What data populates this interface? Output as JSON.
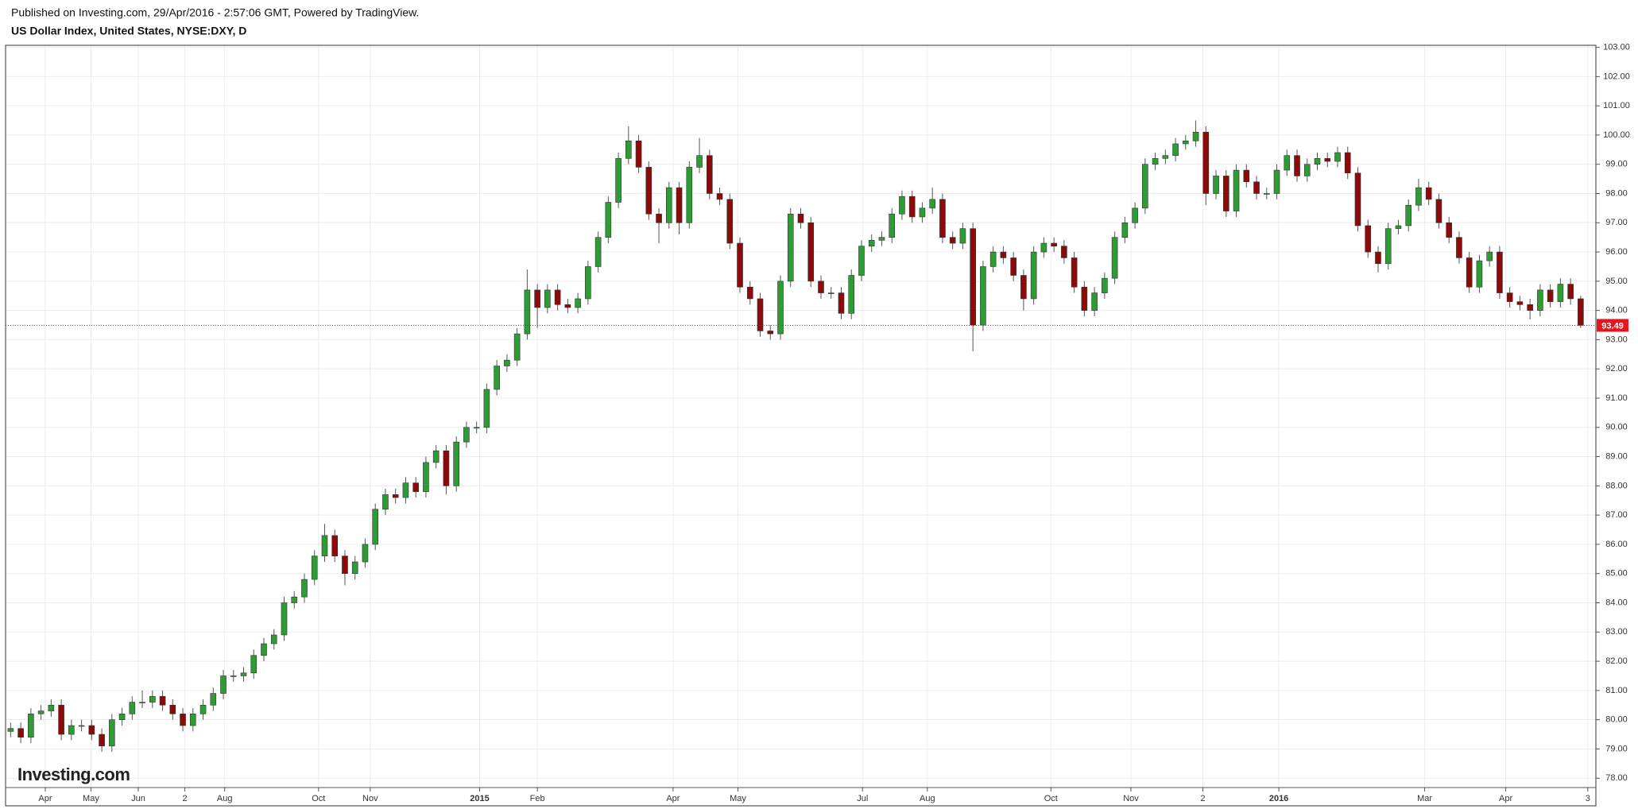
{
  "header": {
    "published": "Published on Investing.com, 29/Apr/2016 - 2:57:06 GMT, Powered by TradingView.",
    "instrument": "US Dollar Index, United States, NYSE:DXY, D"
  },
  "logo": "Investing.com",
  "chart_data": {
    "type": "candlestick",
    "up_color": "#2e9c34",
    "down_color": "#8b0a0a",
    "grid": true,
    "last_price": 93.49,
    "last_price_color": "#e8141b",
    "xlim": [
      -0.5,
      156.5
    ],
    "xticks": [
      {
        "value": 3.42,
        "label": "Apr"
      },
      {
        "value": 7.93,
        "label": "May"
      },
      {
        "value": 12.6,
        "label": "Jun"
      },
      {
        "value": 17.2,
        "label": "2"
      },
      {
        "value": 21.13,
        "label": "Aug"
      },
      {
        "value": 30.4,
        "label": "Oct"
      },
      {
        "value": 35.5,
        "label": "Nov"
      },
      {
        "value": 46.3,
        "label": "2015"
      },
      {
        "value": 52,
        "label": "Feb"
      },
      {
        "value": 65.4,
        "label": "Apr"
      },
      {
        "value": 71.8,
        "label": "May"
      },
      {
        "value": 84.1,
        "label": "Jul"
      },
      {
        "value": 90.5,
        "label": "Aug"
      },
      {
        "value": 102.7,
        "label": "Oct"
      },
      {
        "value": 110.6,
        "label": "Nov"
      },
      {
        "value": 117.7,
        "label": "2"
      },
      {
        "value": 125.2,
        "label": "2016"
      },
      {
        "value": 139.6,
        "label": "Mar"
      },
      {
        "value": 147.6,
        "label": "Apr"
      },
      {
        "value": 155.7,
        "label": "3"
      }
    ],
    "ylim": [
      77.68,
      103.07
    ],
    "yticks": [
      {
        "value": 78,
        "label": "78.00"
      },
      {
        "value": 79,
        "label": "79.00"
      },
      {
        "value": 80,
        "label": "80.00"
      },
      {
        "value": 81,
        "label": "81.00"
      },
      {
        "value": 82,
        "label": "82.00"
      },
      {
        "value": 83,
        "label": "83.00"
      },
      {
        "value": 84,
        "label": "84.00"
      },
      {
        "value": 85,
        "label": "85.00"
      },
      {
        "value": 86,
        "label": "86.00"
      },
      {
        "value": 87,
        "label": "87.00"
      },
      {
        "value": 88,
        "label": "88.00"
      },
      {
        "value": 89,
        "label": "89.00"
      },
      {
        "value": 90,
        "label": "90.00"
      },
      {
        "value": 91,
        "label": "91.00"
      },
      {
        "value": 92,
        "label": "92.00"
      },
      {
        "value": 93,
        "label": "93.00"
      },
      {
        "value": 94,
        "label": "94.00"
      },
      {
        "value": 95,
        "label": "95.00"
      },
      {
        "value": 96,
        "label": "96.00"
      },
      {
        "value": 97,
        "label": "97.00"
      },
      {
        "value": 98,
        "label": "98.00"
      },
      {
        "value": 99,
        "label": "99.00"
      },
      {
        "value": 100,
        "label": "100.00"
      },
      {
        "value": 101,
        "label": "101.00"
      },
      {
        "value": 102,
        "label": "102.00"
      },
      {
        "value": 103,
        "label": "103.00"
      }
    ],
    "open": [
      79.6,
      79.7,
      79.4,
      80.2,
      80.3,
      80.5,
      79.5,
      79.8,
      79.8,
      79.5,
      79.1,
      80.0,
      80.2,
      80.6,
      80.6,
      80.8,
      80.5,
      80.2,
      79.8,
      80.2,
      80.5,
      80.9,
      81.5,
      81.5,
      81.6,
      82.2,
      82.6,
      82.9,
      84.0,
      84.2,
      84.8,
      85.6,
      86.3,
      85.6,
      85.0,
      85.4,
      86.0,
      87.2,
      87.7,
      87.6,
      88.1,
      87.8,
      88.8,
      89.2,
      88.0,
      89.5,
      90.0,
      90.0,
      91.3,
      92.1,
      92.3,
      93.2,
      94.7,
      94.1,
      94.7,
      94.2,
      94.1,
      94.4,
      95.5,
      96.5,
      97.7,
      99.2,
      99.8,
      98.9,
      97.3,
      97.0,
      98.2,
      97.0,
      98.9,
      99.3,
      98.0,
      97.8,
      96.3,
      94.8,
      94.4,
      93.3,
      93.2,
      95.0,
      97.3,
      97.0,
      95.0,
      94.6,
      94.6,
      93.9,
      95.2,
      96.2,
      96.4,
      96.5,
      97.3,
      97.9,
      97.2,
      97.5,
      97.8,
      96.5,
      96.3,
      96.8,
      93.5,
      95.5,
      96.0,
      95.8,
      95.2,
      94.4,
      96.0,
      96.3,
      96.2,
      95.8,
      94.8,
      94.0,
      94.6,
      95.1,
      96.5,
      97.0,
      97.5,
      99.0,
      99.2,
      99.3,
      99.7,
      99.8,
      100.1,
      98.0,
      98.6,
      97.4,
      98.8,
      98.4,
      98.0,
      98.0,
      98.8,
      99.3,
      98.6,
      99.0,
      99.2,
      99.1,
      99.4,
      98.7,
      96.9,
      96.0,
      95.6,
      96.8,
      96.9,
      97.6,
      98.2,
      97.8,
      97.0,
      96.5,
      95.8,
      94.8,
      95.7,
      96.0,
      94.6,
      94.3,
      94.2,
      94.0,
      94.7,
      94.3,
      94.9,
      94.4
    ],
    "high": [
      79.9,
      79.9,
      80.4,
      80.5,
      80.7,
      80.7,
      80.0,
      80.0,
      80.0,
      79.7,
      80.2,
      80.4,
      80.8,
      81.0,
      81.0,
      81.0,
      80.7,
      80.4,
      80.4,
      80.7,
      81.1,
      81.7,
      81.7,
      81.8,
      82.4,
      82.8,
      83.1,
      84.2,
      84.4,
      85.0,
      85.8,
      86.7,
      86.5,
      85.8,
      85.6,
      86.2,
      87.4,
      87.9,
      87.9,
      88.3,
      88.3,
      89.0,
      89.4,
      89.4,
      89.7,
      90.2,
      90.2,
      91.5,
      92.3,
      92.5,
      93.4,
      95.4,
      94.9,
      94.9,
      94.9,
      94.4,
      94.6,
      95.7,
      96.7,
      97.9,
      99.4,
      100.3,
      100.0,
      99.1,
      97.5,
      98.4,
      98.4,
      99.1,
      99.9,
      99.5,
      98.2,
      98.0,
      96.5,
      95.0,
      94.6,
      93.5,
      95.2,
      97.5,
      97.5,
      97.2,
      95.2,
      94.8,
      94.8,
      95.4,
      96.4,
      96.6,
      96.7,
      97.5,
      98.1,
      98.1,
      97.7,
      98.2,
      98.0,
      96.7,
      97.0,
      97.0,
      95.7,
      96.2,
      96.2,
      96.0,
      95.4,
      96.2,
      96.5,
      96.5,
      96.4,
      96.0,
      95.0,
      94.8,
      95.3,
      96.7,
      97.2,
      97.7,
      99.2,
      99.4,
      99.5,
      99.9,
      100.0,
      100.5,
      100.3,
      98.8,
      98.8,
      99.0,
      99.0,
      98.6,
      98.2,
      99.0,
      99.5,
      99.5,
      99.2,
      99.4,
      99.4,
      99.6,
      99.6,
      98.9,
      97.1,
      96.2,
      97.0,
      97.1,
      97.8,
      98.5,
      98.4,
      98.0,
      97.2,
      96.7,
      96.0,
      95.9,
      96.2,
      96.2,
      94.8,
      94.5,
      94.4,
      94.9,
      94.9,
      95.1,
      95.1,
      94.5
    ],
    "low": [
      79.4,
      79.2,
      79.2,
      80.0,
      80.1,
      79.3,
      79.3,
      79.6,
      79.3,
      78.9,
      78.9,
      79.8,
      80.0,
      80.4,
      80.4,
      80.3,
      80.0,
      79.6,
      79.6,
      80.0,
      80.3,
      80.7,
      81.3,
      81.3,
      81.4,
      82.0,
      82.4,
      82.7,
      83.8,
      84.0,
      84.6,
      85.4,
      85.4,
      84.6,
      84.8,
      85.2,
      85.8,
      87.0,
      87.4,
      87.4,
      87.6,
      87.6,
      88.6,
      87.7,
      87.8,
      89.3,
      89.8,
      89.8,
      91.1,
      91.9,
      92.1,
      93.0,
      93.4,
      93.9,
      94.0,
      93.9,
      93.9,
      94.2,
      95.3,
      96.3,
      97.5,
      99.0,
      98.7,
      97.1,
      96.3,
      96.8,
      96.6,
      96.8,
      98.7,
      97.8,
      97.6,
      96.1,
      94.6,
      94.2,
      93.1,
      93.0,
      93.0,
      94.8,
      96.8,
      94.8,
      94.4,
      94.4,
      93.7,
      93.7,
      95.0,
      96.0,
      96.2,
      96.3,
      97.1,
      97.0,
      97.0,
      97.3,
      96.3,
      96.1,
      96.1,
      92.6,
      93.3,
      95.3,
      95.6,
      95.0,
      94.0,
      94.2,
      95.8,
      96.0,
      95.6,
      94.6,
      93.8,
      93.8,
      94.4,
      94.9,
      96.3,
      96.8,
      97.3,
      98.8,
      99.0,
      99.1,
      99.5,
      99.6,
      97.6,
      97.8,
      97.2,
      97.2,
      98.2,
      97.8,
      97.8,
      97.8,
      98.6,
      98.4,
      98.4,
      98.8,
      98.9,
      98.9,
      98.5,
      96.7,
      95.8,
      95.3,
      95.4,
      96.6,
      96.7,
      97.4,
      97.6,
      96.8,
      96.3,
      95.6,
      94.6,
      94.6,
      95.5,
      94.4,
      94.1,
      94.0,
      93.7,
      93.8,
      94.1,
      94.1,
      94.2,
      93.4
    ],
    "close": [
      79.7,
      79.4,
      80.2,
      80.3,
      80.5,
      79.5,
      79.8,
      79.8,
      79.5,
      79.1,
      80.0,
      80.2,
      80.6,
      80.6,
      80.8,
      80.5,
      80.2,
      79.8,
      80.2,
      80.5,
      80.9,
      81.5,
      81.5,
      81.6,
      82.2,
      82.6,
      82.9,
      84.0,
      84.2,
      84.8,
      85.6,
      86.3,
      85.6,
      85.0,
      85.4,
      86.0,
      87.2,
      87.7,
      87.6,
      88.1,
      87.8,
      88.8,
      89.2,
      88.0,
      89.5,
      90.0,
      90.0,
      91.3,
      92.1,
      92.3,
      93.2,
      94.7,
      94.1,
      94.7,
      94.2,
      94.1,
      94.4,
      95.5,
      96.5,
      97.7,
      99.2,
      99.8,
      98.9,
      97.3,
      97.0,
      98.2,
      97.0,
      98.9,
      99.3,
      98.0,
      97.8,
      96.3,
      94.8,
      94.4,
      93.3,
      93.2,
      95.0,
      97.3,
      97.0,
      95.0,
      94.6,
      94.6,
      93.9,
      95.2,
      96.2,
      96.4,
      96.5,
      97.3,
      97.9,
      97.2,
      97.5,
      97.8,
      96.5,
      96.3,
      96.8,
      93.5,
      95.5,
      96.0,
      95.8,
      95.2,
      94.4,
      96.0,
      96.3,
      96.2,
      95.8,
      94.8,
      94.0,
      94.6,
      95.1,
      96.5,
      97.0,
      97.5,
      99.0,
      99.2,
      99.3,
      99.7,
      99.8,
      100.1,
      98.0,
      98.6,
      97.4,
      98.8,
      98.4,
      98.0,
      98.0,
      98.8,
      99.3,
      98.6,
      99.0,
      99.2,
      99.1,
      99.4,
      98.7,
      96.9,
      96.0,
      95.6,
      96.8,
      96.9,
      97.6,
      98.2,
      97.8,
      97.0,
      96.5,
      95.8,
      94.8,
      95.7,
      96.0,
      94.6,
      94.3,
      94.2,
      94.0,
      94.7,
      94.3,
      94.9,
      94.4,
      93.49
    ]
  }
}
